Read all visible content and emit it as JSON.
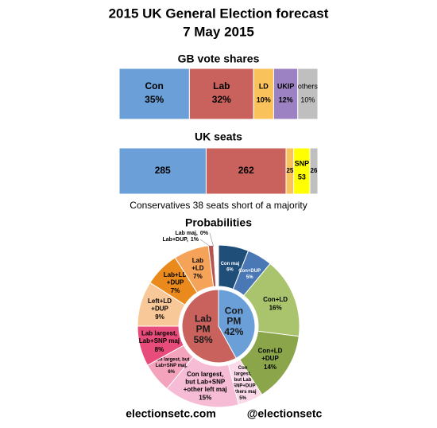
{
  "title": "2015 UK General Election forecast",
  "subtitle": "7 May 2015",
  "footer": [
    "electionsetc.com",
    "@electionsetc"
  ],
  "chart_data": [
    {
      "type": "stacked-bar",
      "title": "GB vote shares",
      "series": [
        {
          "name": "Con",
          "color": "#6a9fd8",
          "values": [
            35
          ],
          "value_labels": [
            "35%"
          ]
        },
        {
          "name": "Lab",
          "color": "#c9615c",
          "values": [
            32
          ],
          "value_labels": [
            "32%"
          ]
        },
        {
          "name": "LD",
          "color": "#f9c25a",
          "values": [
            10
          ],
          "value_labels": [
            "10%"
          ]
        },
        {
          "name": "UKIP",
          "color": "#9c82c2",
          "values": [
            12
          ],
          "value_labels": [
            "12%"
          ]
        },
        {
          "name": "others",
          "color": "#bfbfbf",
          "values": [
            10
          ],
          "value_labels": [
            "10%"
          ]
        }
      ]
    },
    {
      "type": "stacked-bar",
      "title": "UK seats",
      "annotation": "Conservatives 38 seats short of a majority",
      "series": [
        {
          "name": null,
          "color": "#6a9fd8",
          "values": [
            285
          ]
        },
        {
          "name": null,
          "color": "#c9615c",
          "values": [
            262
          ]
        },
        {
          "name": null,
          "color": "#f9c25a",
          "values": [
            25
          ]
        },
        {
          "name": "SNP",
          "color": "#ffff00",
          "values": [
            53
          ]
        },
        {
          "name": null,
          "color": "#bfbfbf",
          "values": [
            26
          ]
        }
      ]
    },
    {
      "type": "donut",
      "title": "Probabilities",
      "inner": {
        "categories": [
          "Con\nPM",
          "Lab\nPM"
        ],
        "values": [
          42,
          58
        ],
        "value_labels": [
          "42%",
          "58%"
        ],
        "colors": [
          "#6a9fd8",
          "#c9615c"
        ]
      },
      "outer": {
        "categories": [
          "Con maj",
          "Con+DUP",
          "Con+LD",
          "Con+LD\n+DUP",
          "Con\nlargest,\nbut Lab\n+SNP+DUP\n+others maj",
          "Con largest,\nbut Lab+SNP\n+other left maj",
          "Con largest, but\nLab+SNP maj,",
          "Lab largest,\nLab+SNP maj",
          "Left+LD\n+DUP",
          "Lab+LD\n+DUP",
          "Lab\n+LD",
          "Lab+DUP,",
          "Lab maj,"
        ],
        "values": [
          6,
          5,
          16,
          14,
          5,
          15,
          6,
          8,
          9,
          7,
          7,
          1,
          0
        ],
        "value_labels": [
          "6%",
          "5%",
          "16%",
          "14%",
          "5%",
          "15%",
          "6%",
          "8%",
          "9%",
          "7%",
          "7%",
          "1%",
          "0%"
        ],
        "colors": [
          "#1f4e79",
          "#4a78b5",
          "#a9c46c",
          "#8aa54a",
          "#fad9e8",
          "#f7bcd5",
          "#f4a3bd",
          "#e84c7b",
          "#f9c898",
          "#ea8a1c",
          "#f6a35a",
          "#b85450",
          "#c0504d"
        ]
      }
    }
  ]
}
